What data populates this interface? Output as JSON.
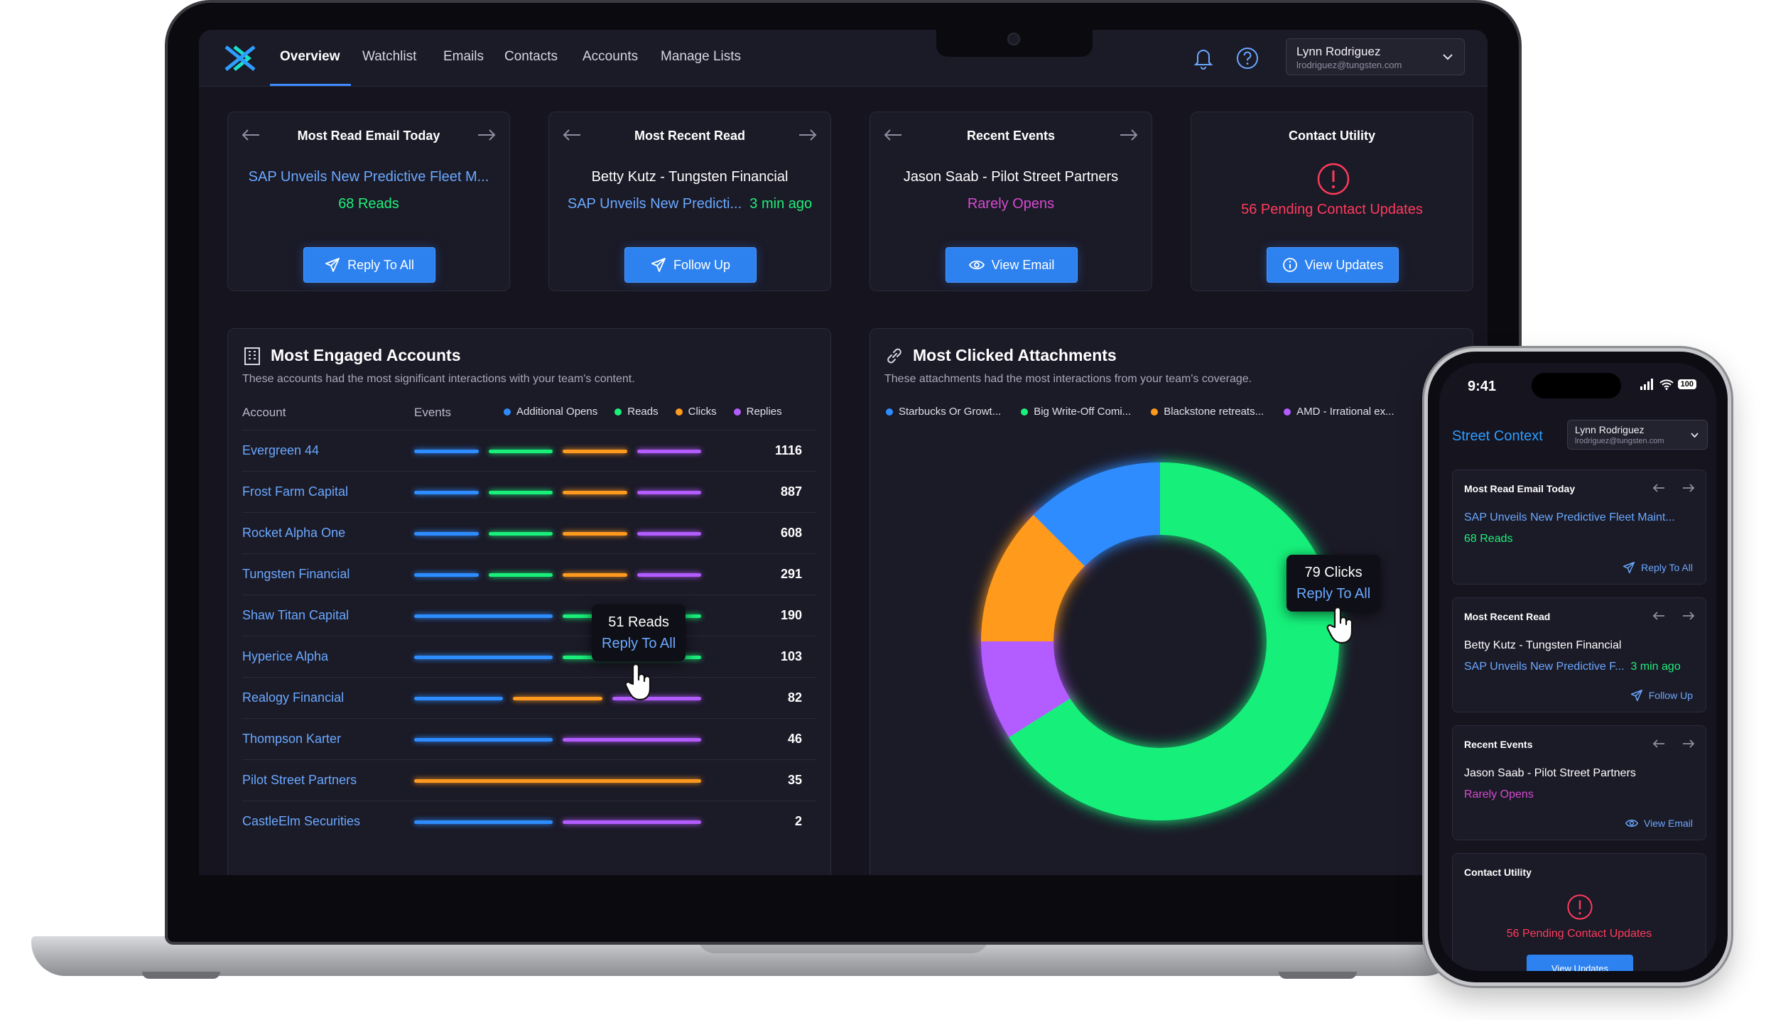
{
  "nav": {
    "links": [
      "Overview",
      "Watchlist",
      "Emails",
      "Contacts",
      "Accounts",
      "Manage Lists"
    ],
    "user_name": "Lynn Rodriguez",
    "user_email": "lrodriguez@tungsten.com"
  },
  "cards": {
    "most_read": {
      "title": "Most Read Email Today",
      "subject": "SAP Unveils New Predictive Fleet M...",
      "reads": "68 Reads",
      "button": "Reply To All"
    },
    "most_recent": {
      "title": "Most Recent Read",
      "contact": "Betty Kutz - Tungsten Financial",
      "subject": "SAP Unveils New Predicti...",
      "time": "3 min ago",
      "button": "Follow Up"
    },
    "recent_events": {
      "title": "Recent Events",
      "contact": "Jason Saab - Pilot Street Partners",
      "status": "Rarely Opens",
      "button": "View Email"
    },
    "contact_utility": {
      "title": "Contact Utility",
      "pending": "56 Pending Contact Updates",
      "button": "View Updates"
    }
  },
  "accounts": {
    "title": "Most Engaged Accounts",
    "subtitle": "These accounts had the most significant interactions with your team's content.",
    "col_account": "Account",
    "col_events": "Events",
    "legend": [
      "Additional Opens",
      "Reads",
      "Clicks",
      "Replies"
    ],
    "colors": {
      "opens": "#2d8cff",
      "reads": "#19f07a",
      "clicks": "#ff9a1f",
      "replies": "#b35cff"
    },
    "rows": [
      {
        "name": "Evergreen 44",
        "value": "1116",
        "segments": [
          "opens",
          "reads",
          "clicks",
          "replies"
        ]
      },
      {
        "name": "Frost Farm Capital",
        "value": "887",
        "segments": [
          "opens",
          "reads",
          "clicks",
          "replies"
        ]
      },
      {
        "name": "Rocket Alpha One",
        "value": "608",
        "segments": [
          "opens",
          "reads",
          "clicks",
          "replies"
        ]
      },
      {
        "name": "Tungsten Financial",
        "value": "291",
        "segments": [
          "opens",
          "reads",
          "clicks",
          "replies"
        ]
      },
      {
        "name": "Shaw Titan Capital",
        "value": "190",
        "segments": [
          "opens",
          "reads"
        ]
      },
      {
        "name": "Hyperice Alpha",
        "value": "103",
        "segments": [
          "opens",
          "reads"
        ]
      },
      {
        "name": "Realogy Financial",
        "value": "82",
        "segments": [
          "opens",
          "clicks",
          "replies"
        ]
      },
      {
        "name": "Thompson Karter",
        "value": "46",
        "segments": [
          "opens",
          "replies"
        ]
      },
      {
        "name": "Pilot Street Partners",
        "value": "35",
        "segments": [
          "clicks"
        ]
      },
      {
        "name": "CastleElm Securities",
        "value": "2",
        "segments": [
          "opens",
          "replies"
        ]
      }
    ],
    "tooltip": {
      "line1": "51 Reads",
      "line2": "Reply To All"
    }
  },
  "attachments": {
    "title": "Most Clicked Attachments",
    "subtitle": "These attachments had the most interactions from your team's coverage.",
    "legend": [
      "Starbucks Or Growt...",
      "Big Write-Off Comi...",
      "Blackstone retreats...",
      "AMD - Irrational ex..."
    ],
    "tooltip": {
      "line1": "79 Clicks",
      "line2": "Reply To All"
    }
  },
  "chart_data": {
    "type": "pie",
    "labels": [
      "Starbucks Or Growt...",
      "Big Write-Off Comi...",
      "Blackstone retreats...",
      "AMD - Irrational ex..."
    ],
    "values": [
      12.5,
      66,
      12.5,
      9
    ],
    "colors": [
      "#2d8cff",
      "#19f07a",
      "#ff9a1f",
      "#b35cff"
    ]
  },
  "phone": {
    "time": "9:41",
    "battery": "100",
    "brand": "Street Context",
    "user_name": "Lynn Rodriguez",
    "user_email": "lrodriguez@tungsten.com",
    "most_read": {
      "title": "Most Read Email Today",
      "subject": "SAP Unveils New Predictive Fleet Maint...",
      "reads": "68 Reads",
      "action": "Reply To All"
    },
    "most_recent": {
      "title": "Most Recent Read",
      "contact": "Betty Kutz - Tungsten Financial",
      "subject": "SAP Unveils New Predictive F...",
      "time": "3 min ago",
      "action": "Follow Up"
    },
    "recent_events": {
      "title": "Recent Events",
      "contact": "Jason Saab - Pilot Street Partners",
      "status": "Rarely Opens",
      "action": "View Email"
    },
    "contact_utility": {
      "title": "Contact Utility",
      "pending": "56 Pending Contact Updates",
      "button": "View Updates"
    }
  }
}
